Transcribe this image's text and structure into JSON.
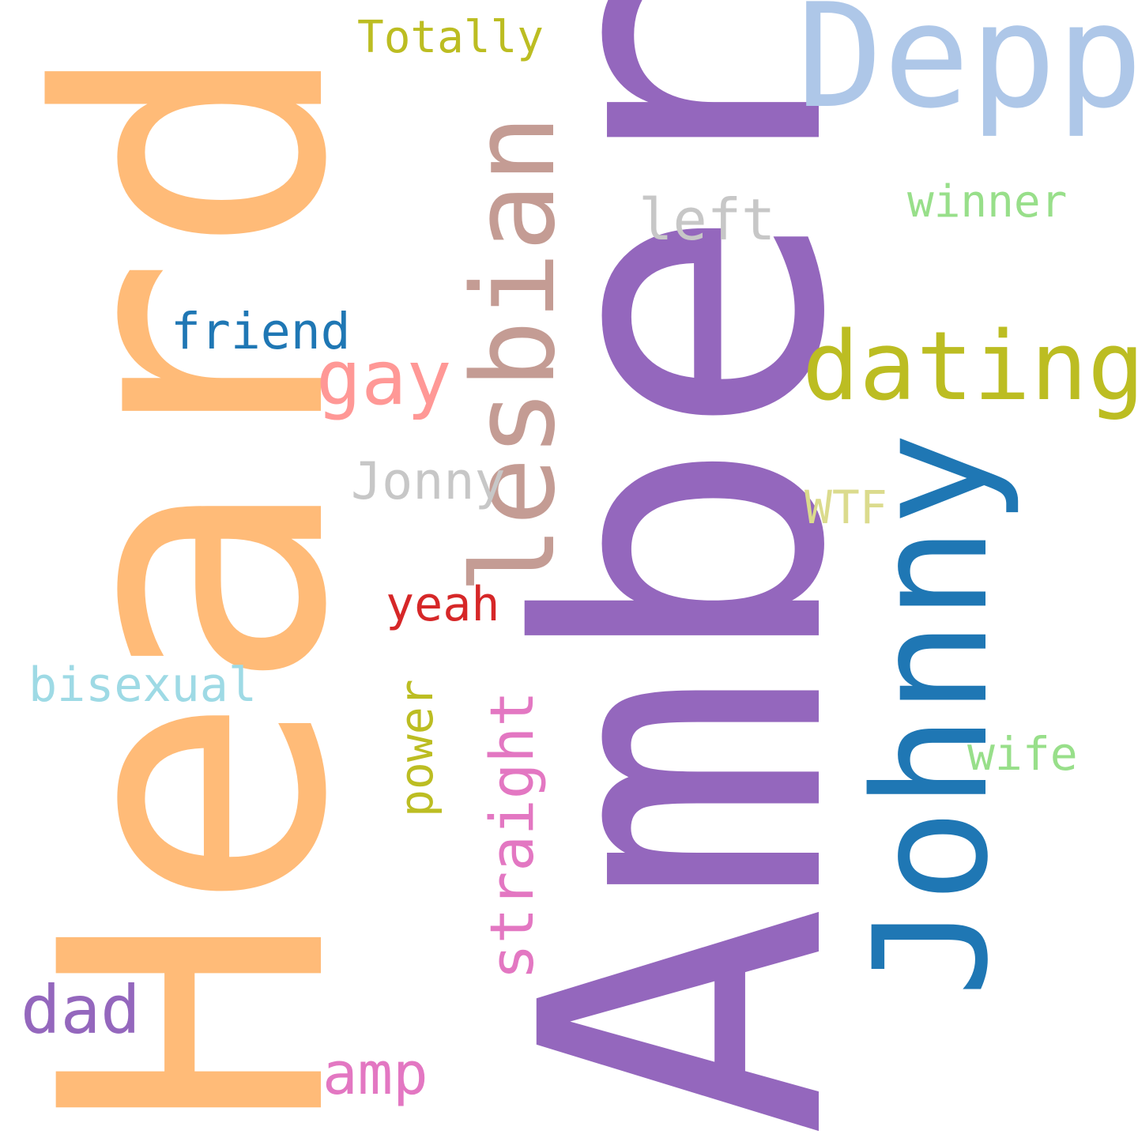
{
  "words": {
    "heard": {
      "text": "Heard",
      "color": "#ffbb78"
    },
    "amber": {
      "text": "Amber",
      "color": "#9467bd"
    },
    "depp": {
      "text": "Depp",
      "color": "#aec7e8"
    },
    "totally": {
      "text": "Totally",
      "color": "#bcbd22"
    },
    "lesbian": {
      "text": "lesbian",
      "color": "#c49c94"
    },
    "left": {
      "text": "left",
      "color": "#c7c7c7"
    },
    "winner": {
      "text": "winner",
      "color": "#98df8a"
    },
    "friend": {
      "text": "friend",
      "color": "#1f77b4"
    },
    "gay": {
      "text": "gay",
      "color": "#ff9896"
    },
    "dating": {
      "text": "dating",
      "color": "#bcbd22"
    },
    "jonny": {
      "text": "Jonny",
      "color": "#c7c7c7"
    },
    "wtf": {
      "text": "WTF",
      "color": "#dbdb8d"
    },
    "johnny": {
      "text": "Johnny",
      "color": "#1f77b4"
    },
    "yeah": {
      "text": "yeah",
      "color": "#d62728"
    },
    "bisexual": {
      "text": "bisexual",
      "color": "#9edae5"
    },
    "power": {
      "text": "power",
      "color": "#bcbd22"
    },
    "straight": {
      "text": "straight",
      "color": "#e377c2"
    },
    "wife": {
      "text": "wife",
      "color": "#98df8a"
    },
    "dad": {
      "text": "dad",
      "color": "#9467bd"
    },
    "amp": {
      "text": "amp",
      "color": "#e377c2"
    }
  }
}
